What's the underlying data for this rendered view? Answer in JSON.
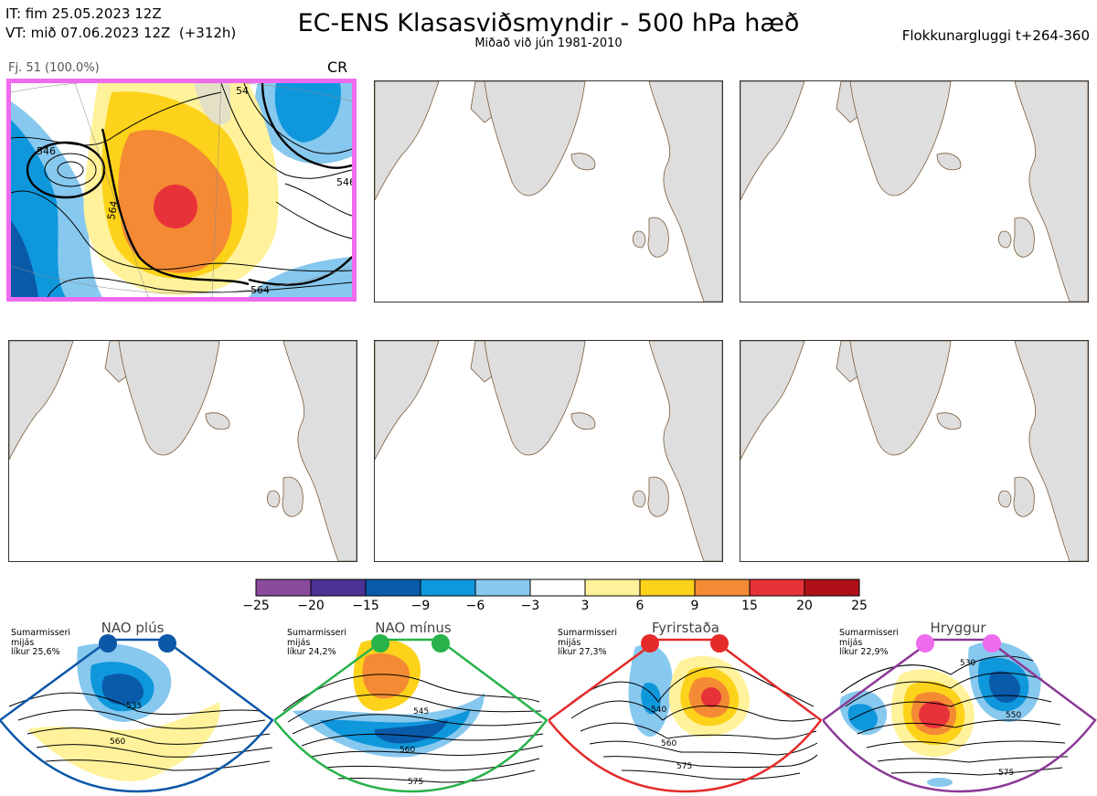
{
  "header": {
    "init_time": "IT: fim 25.05.2023 12Z",
    "valid_time": "VT: mið 07.06.2023 12Z  (+312h)",
    "title": "EC-ENS Klasasviðsmyndir - 500 hPa hæð",
    "subtitle": "Miðað við jún 1981-2010",
    "window": "Flokkunargluggi t+264-360"
  },
  "panels": [
    {
      "label": "Fj. 51 (100.0%)",
      "tag": "CR",
      "selected": true,
      "contours": [
        "546",
        "564",
        "564",
        "546",
        "54"
      ]
    },
    {
      "label": "",
      "tag": "",
      "selected": false
    },
    {
      "label": "",
      "tag": "",
      "selected": false
    },
    {
      "label": "",
      "tag": "",
      "selected": false
    },
    {
      "label": "",
      "tag": "",
      "selected": false
    },
    {
      "label": "",
      "tag": "",
      "selected": false
    }
  ],
  "colorbar": {
    "labels": [
      "−25",
      "−20",
      "−15",
      "−9",
      "−6",
      "−3",
      "3",
      "6",
      "9",
      "15",
      "20",
      "25"
    ],
    "colors": [
      "#8b4a9c",
      "#4a3394",
      "#0a5aaa",
      "#0f97dc",
      "#87c8ee",
      "#ffffff",
      "#fff29a",
      "#fdd21a",
      "#f48a34",
      "#e8323a",
      "#b01018"
    ]
  },
  "regimes": [
    {
      "name": "NAO plús",
      "season": "Sumarmisseri",
      "type": "mijás",
      "prob": "líkur 25,6%",
      "dot_color": "#0b57a8",
      "frame_color": "#0b57a8",
      "contours": [
        "535",
        "560"
      ]
    },
    {
      "name": "NAO mínus",
      "season": "Sumarmisseri",
      "type": "mijás",
      "prob": "líkur 24,2%",
      "dot_color": "#27b24a",
      "frame_color": "#27b24a",
      "contours": [
        "545",
        "560",
        "575"
      ]
    },
    {
      "name": "Fyrirstaða",
      "season": "Sumarmisseri",
      "type": "mijás",
      "prob": "líkur 27,3%",
      "dot_color": "#e52a2a",
      "frame_color": "#e52a2a",
      "contours": [
        "540",
        "560",
        "575"
      ]
    },
    {
      "name": "Hryggur",
      "season": "Sumarmisseri",
      "type": "mijás",
      "prob": "líkur 22,9%",
      "dot_color": "#ee6bee",
      "frame_color": "#8b3a96",
      "contours": [
        "530",
        "550",
        "575"
      ]
    }
  ],
  "chart_data": {
    "type": "heatmap",
    "variable": "500 hPa geopotential height anomaly (dam)",
    "colorbar_levels": [
      -25,
      -20,
      -15,
      -9,
      -6,
      -3,
      3,
      6,
      9,
      15,
      20,
      25
    ],
    "clusters": [
      {
        "name": "CR",
        "members": 51,
        "percent": 100.0
      }
    ],
    "regime_probabilities": [
      {
        "regime": "NAO plús",
        "probability": 25.6
      },
      {
        "regime": "NAO mínus",
        "probability": 24.2
      },
      {
        "regime": "Fyrirstaða",
        "probability": 27.3
      },
      {
        "regime": "Hryggur",
        "probability": 22.9
      }
    ]
  }
}
